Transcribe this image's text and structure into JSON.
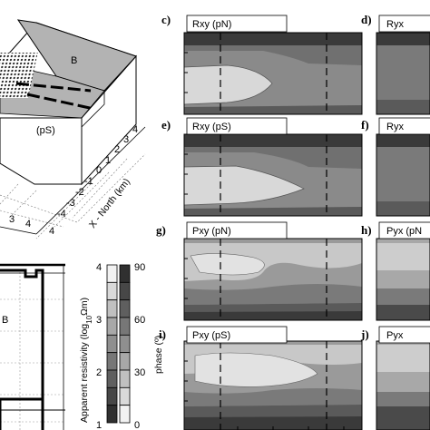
{
  "panel_labels": {
    "c": "c)",
    "d": "d)",
    "e": "e)",
    "f": "f)",
    "g": "g)",
    "h": "h)",
    "i": "i)",
    "j": "j)"
  },
  "panel_titles": {
    "c": "Rxy (pN)",
    "d": "Ryx",
    "e": "Rxy (pS)",
    "f": "Ryx",
    "g": "Pxy (pN)",
    "h": "Pyx (pN",
    "i": "Pxy (pS)",
    "j": "Pyx"
  },
  "block_diagram": {
    "region_b": "B",
    "region_ps": "(pS)",
    "axis_label": "X - North (km)",
    "ticks_right": [
      "4",
      "3",
      "2",
      "1",
      "0",
      "-1",
      "-2",
      "-3",
      "-4"
    ],
    "ticks_bottom": [
      "3",
      "4",
      "4"
    ]
  },
  "section": {
    "label_b": "B"
  },
  "colorbar": {
    "resistivity_label_prefix": "Apparent resistivity (log",
    "resistivity_label_sub": "10",
    "resistivity_label_suffix": "Ωm)",
    "phase_label": "phase (º)",
    "resistivity_ticks": [
      "4",
      "3",
      "2",
      "1"
    ],
    "phase_ticks": [
      "90",
      "60",
      "30",
      "0"
    ],
    "shades": [
      "#f2f2f2",
      "#d9d9d9",
      "#c0c0c0",
      "#a8a8a8",
      "#8f8f8f",
      "#777777",
      "#5f5f5f",
      "#474747",
      "#303030"
    ]
  }
}
